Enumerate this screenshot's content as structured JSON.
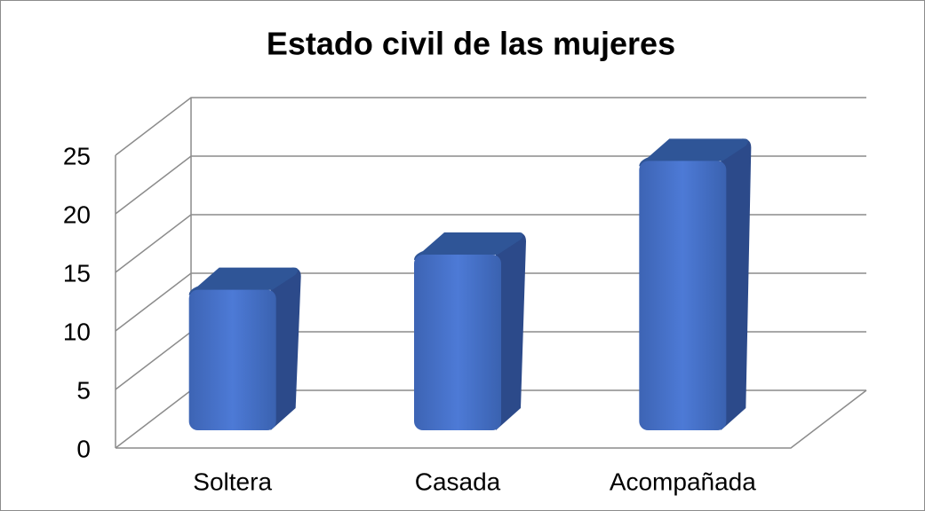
{
  "chart_data": {
    "type": "bar3d",
    "title": "Estado civil de las mujeres",
    "categories": [
      "Soltera",
      "Casada",
      "Acompañada"
    ],
    "values": [
      12,
      15,
      23
    ],
    "color": "#4472c4",
    "ylim": [
      0,
      25
    ],
    "yticks": [
      0,
      5,
      10,
      15,
      20,
      25
    ],
    "grid": true
  }
}
